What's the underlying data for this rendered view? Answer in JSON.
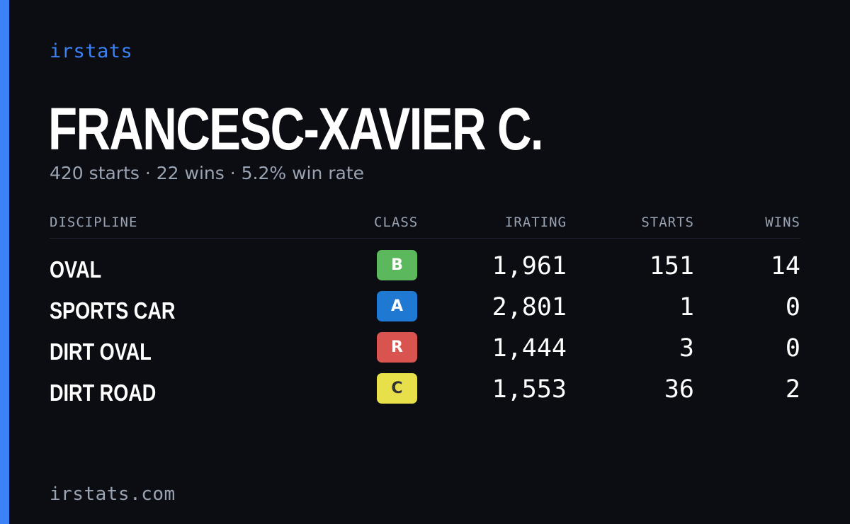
{
  "colors": {
    "background": "#0b0d13",
    "accent": "#3b82f6",
    "muted_text": "#9aa3b2",
    "primary_text": "#ffffff"
  },
  "brand": {
    "name": "irstats"
  },
  "driver": {
    "name": "FRANCESC-XAVIER C.",
    "summary": "420 starts · 22 wins · 5.2% win rate"
  },
  "table": {
    "headers": {
      "discipline": "DISCIPLINE",
      "class": "CLASS",
      "irating": "IRATING",
      "starts": "STARTS",
      "wins": "WINS"
    },
    "rows": [
      {
        "discipline": "OVAL",
        "class": "B",
        "class_bg": "#5cb85c",
        "class_fg": "#ffffff",
        "irating": "1,961",
        "starts": "151",
        "wins": "14"
      },
      {
        "discipline": "SPORTS CAR",
        "class": "A",
        "class_bg": "#1f78d1",
        "class_fg": "#ffffff",
        "irating": "2,801",
        "starts": "1",
        "wins": "0"
      },
      {
        "discipline": "DIRT OVAL",
        "class": "R",
        "class_bg": "#d9534f",
        "class_fg": "#ffffff",
        "irating": "1,444",
        "starts": "3",
        "wins": "0"
      },
      {
        "discipline": "DIRT ROAD",
        "class": "C",
        "class_bg": "#e8e04a",
        "class_fg": "#333333",
        "irating": "1,553",
        "starts": "36",
        "wins": "2"
      }
    ]
  },
  "footer": {
    "url": "irstats.com"
  }
}
